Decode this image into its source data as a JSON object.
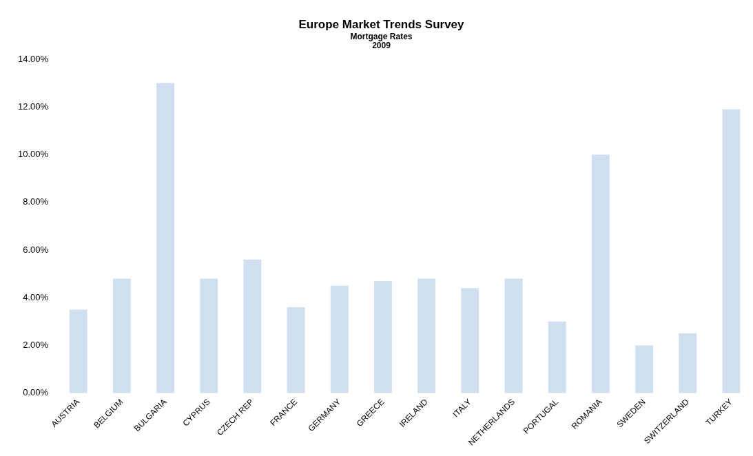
{
  "chart_data": {
    "type": "bar",
    "title": "Europe Market Trends Survey",
    "subtitle": "Mortgage Rates\n2009",
    "categories": [
      "AUSTRIA",
      "BELGIUM",
      "BULGARIA",
      "CYPRUS",
      "CZECH REP",
      "FRANCE",
      "GERMANY",
      "GREECE",
      "IRELAND",
      "ITALY",
      "NETHERLANDS",
      "PORTUGAL",
      "ROMANIA",
      "SWEDEN",
      "SWITZERLAND",
      "TURKEY"
    ],
    "values": [
      3.5,
      4.8,
      13.0,
      4.8,
      5.6,
      3.6,
      4.5,
      4.7,
      4.8,
      4.4,
      4.8,
      3.0,
      10.0,
      2.0,
      2.5,
      11.9
    ],
    "color": "#cfdff0",
    "ylim": [
      0,
      14
    ],
    "yticks": [
      {
        "value": 0,
        "label": "0.00%"
      },
      {
        "value": 2,
        "label": "2.00%"
      },
      {
        "value": 4,
        "label": "4.00%"
      },
      {
        "value": 6,
        "label": "6.00%"
      },
      {
        "value": 8,
        "label": "8.00%"
      },
      {
        "value": 10,
        "label": "10.00%"
      },
      {
        "value": 12,
        "label": "12.00%"
      },
      {
        "value": 14,
        "label": "14.00%"
      }
    ],
    "grid": false
  }
}
